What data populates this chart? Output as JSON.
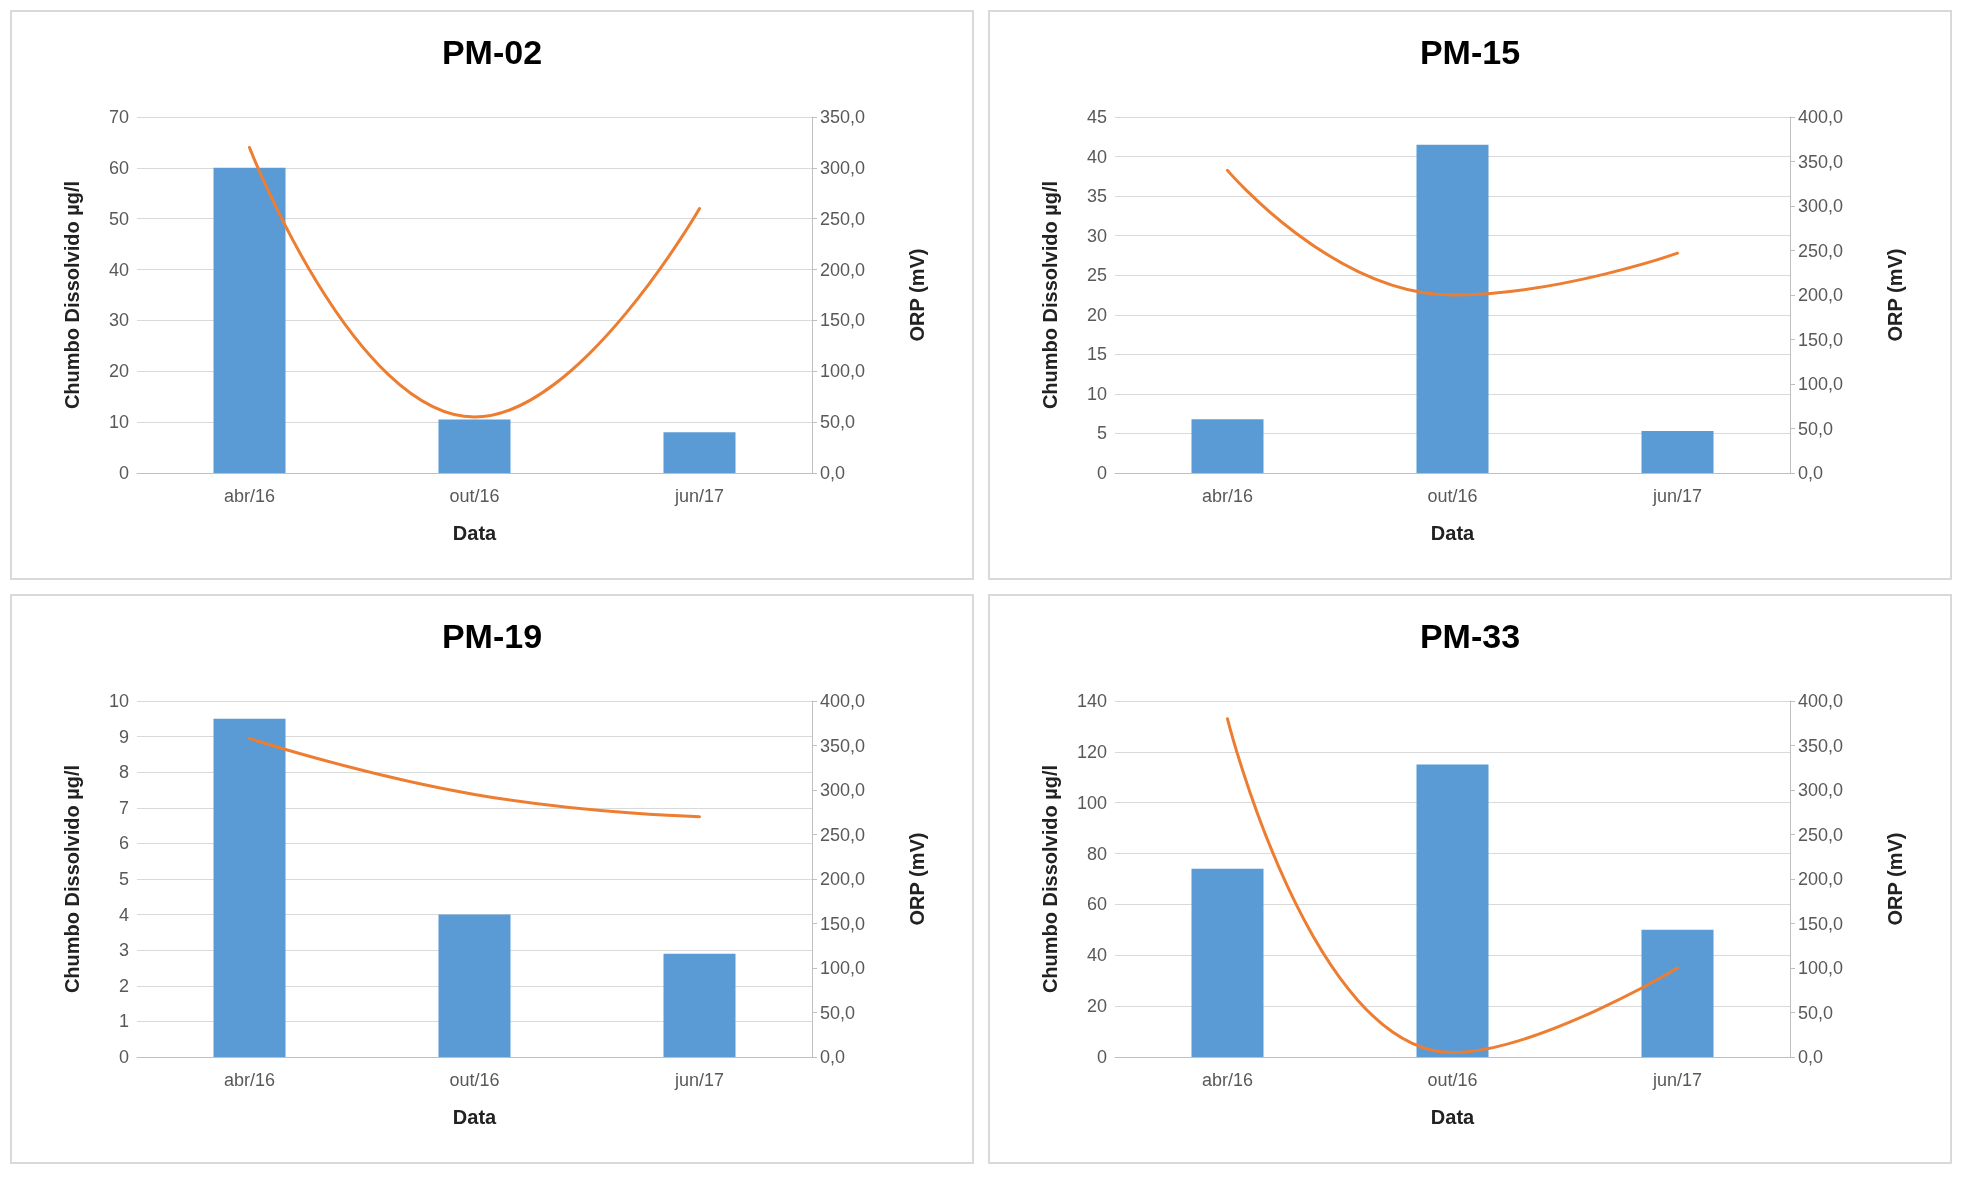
{
  "chart_data": [
    {
      "type": "bar",
      "title": "PM-02",
      "xlabel": "Data",
      "ylabel": "Chumbo Dissolvido µg/l",
      "y2label": "ORP (mV)",
      "categories": [
        "abr/16",
        "out/16",
        "jun/17"
      ],
      "series": [
        {
          "color": "#5b9bd5",
          "values": [
            60,
            10.5,
            8
          ]
        },
        {
          "type": "line",
          "axis": "y2",
          "color": "#ed7d31",
          "values": [
            320,
            55,
            260
          ]
        }
      ],
      "ylim": [
        0,
        70
      ],
      "yticks": [
        0,
        10,
        20,
        30,
        40,
        50,
        60,
        70
      ],
      "y2lim": [
        0,
        350
      ],
      "y2ticks": [
        {
          "value": 0,
          "label": "0,0"
        },
        {
          "value": 50,
          "label": "50,0"
        },
        {
          "value": 100,
          "label": "100,0"
        },
        {
          "value": 150,
          "label": "150,0"
        },
        {
          "value": 200,
          "label": "200,0"
        },
        {
          "value": 250,
          "label": "250,0"
        },
        {
          "value": 300,
          "label": "300,0"
        },
        {
          "value": 350,
          "label": "350,0"
        }
      ],
      "grid": "y",
      "marker": "none",
      "line_style": "solid"
    },
    {
      "type": "bar",
      "title": "PM-15",
      "xlabel": "Data",
      "ylabel": "Chumbo Dissolvido µg/l",
      "y2label": "ORP (mV)",
      "categories": [
        "abr/16",
        "out/16",
        "jun/17"
      ],
      "series": [
        {
          "color": "#5b9bd5",
          "values": [
            6.8,
            41.5,
            5.3
          ]
        },
        {
          "type": "line",
          "axis": "y2",
          "color": "#ed7d31",
          "values": [
            340,
            200,
            247
          ]
        }
      ],
      "ylim": [
        0,
        45
      ],
      "yticks": [
        0,
        5,
        10,
        15,
        20,
        25,
        30,
        35,
        40,
        45
      ],
      "y2lim": [
        0,
        400
      ],
      "y2ticks": [
        {
          "value": 0,
          "label": "0,0"
        },
        {
          "value": 50,
          "label": "50,0"
        },
        {
          "value": 100,
          "label": "100,0"
        },
        {
          "value": 150,
          "label": "150,0"
        },
        {
          "value": 200,
          "label": "200,0"
        },
        {
          "value": 250,
          "label": "250,0"
        },
        {
          "value": 300,
          "label": "300,0"
        },
        {
          "value": 350,
          "label": "350,0"
        },
        {
          "value": 400,
          "label": "400,0"
        }
      ],
      "grid": "y",
      "marker": "none",
      "line_style": "solid"
    },
    {
      "type": "bar",
      "title": "PM-19",
      "xlabel": "Data",
      "ylabel": "Chumbo Dissolvido µg/l",
      "y2label": "ORP (mV)",
      "categories": [
        "abr/16",
        "out/16",
        "jun/17"
      ],
      "series": [
        {
          "color": "#5b9bd5",
          "values": [
            9.5,
            4.0,
            2.9
          ]
        },
        {
          "type": "line",
          "axis": "y2",
          "color": "#ed7d31",
          "values": [
            358,
            295,
            270
          ]
        }
      ],
      "ylim": [
        0,
        10
      ],
      "yticks": [
        0,
        1,
        2,
        3,
        4,
        5,
        6,
        7,
        8,
        9,
        10
      ],
      "y2lim": [
        0,
        400
      ],
      "y2ticks": [
        {
          "value": 0,
          "label": "0,0"
        },
        {
          "value": 50,
          "label": "50,0"
        },
        {
          "value": 100,
          "label": "100,0"
        },
        {
          "value": 150,
          "label": "150,0"
        },
        {
          "value": 200,
          "label": "200,0"
        },
        {
          "value": 250,
          "label": "250,0"
        },
        {
          "value": 300,
          "label": "300,0"
        },
        {
          "value": 350,
          "label": "350,0"
        },
        {
          "value": 400,
          "label": "400,0"
        }
      ],
      "grid": "y",
      "marker": "none",
      "line_style": "solid"
    },
    {
      "type": "bar",
      "title": "PM-33",
      "xlabel": "Data",
      "ylabel": "Chumbo Dissolvido µg/l",
      "y2label": "ORP (mV)",
      "categories": [
        "abr/16",
        "out/16",
        "jun/17"
      ],
      "series": [
        {
          "color": "#5b9bd5",
          "values": [
            74,
            115,
            50
          ]
        },
        {
          "type": "line",
          "axis": "y2",
          "color": "#ed7d31",
          "values": [
            380,
            5,
            100
          ]
        }
      ],
      "ylim": [
        0,
        140
      ],
      "yticks": [
        0,
        20,
        40,
        60,
        80,
        100,
        120,
        140
      ],
      "y2lim": [
        0,
        400
      ],
      "y2ticks": [
        {
          "value": 0,
          "label": "0,0"
        },
        {
          "value": 50,
          "label": "50,0"
        },
        {
          "value": 100,
          "label": "100,0"
        },
        {
          "value": 150,
          "label": "150,0"
        },
        {
          "value": 200,
          "label": "200,0"
        },
        {
          "value": 250,
          "label": "250,0"
        },
        {
          "value": 300,
          "label": "300,0"
        },
        {
          "value": 350,
          "label": "350,0"
        },
        {
          "value": 400,
          "label": "400,0"
        }
      ],
      "grid": "y",
      "marker": "none",
      "line_style": "solid"
    }
  ]
}
